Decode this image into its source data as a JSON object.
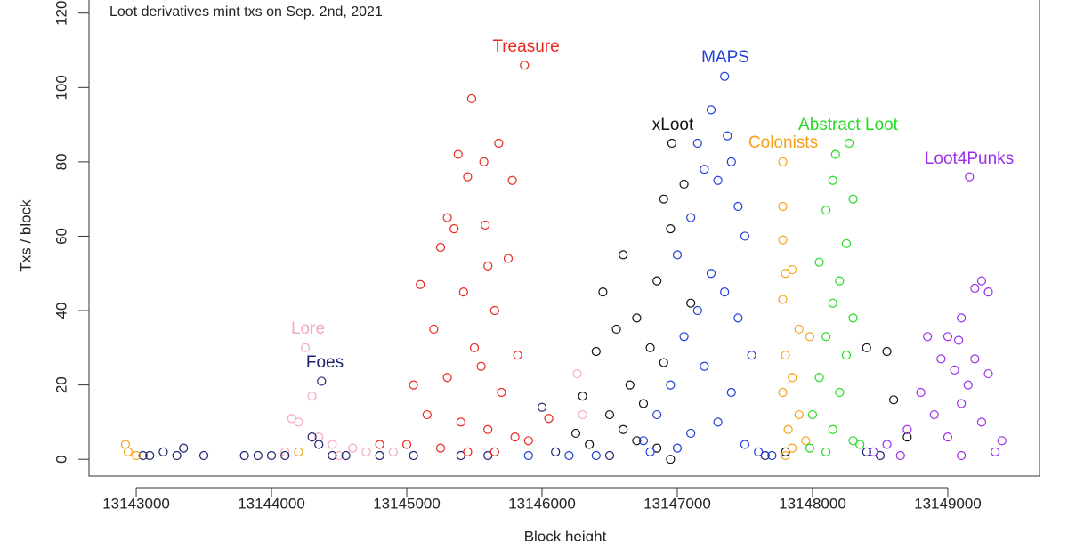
{
  "chart_data": {
    "type": "scatter",
    "title": "Loot derivatives mint txs on Sep. 2nd, 2021",
    "x_label": "Block height",
    "y_label": "Txs / block",
    "xlim": [
      13142651,
      13149678
    ],
    "ylim": [
      -4.5,
      124
    ],
    "xticks": [
      13143000,
      13144000,
      13145000,
      13146000,
      13147000,
      13148000,
      13149000
    ],
    "yticks": [
      0,
      20,
      40,
      60,
      80,
      100,
      120
    ],
    "series": [
      {
        "name": "Lore",
        "color": "#f5a9bf",
        "x": [
          13144250,
          13144300,
          13144150,
          13144200,
          13144350,
          13144450,
          13144600,
          13144700,
          13144900,
          13144500,
          13144100,
          13146260,
          13146300
        ],
        "y": [
          30,
          17,
          11,
          10,
          6,
          4,
          3,
          2,
          2,
          1,
          2,
          23,
          12
        ]
      },
      {
        "name": "Foes",
        "color": "#1c2270",
        "x": [
          13144370,
          13144300,
          13144350,
          13143100,
          13143200,
          13143300,
          13143350,
          13143500,
          13143800,
          13143900,
          13144000,
          13144100,
          13144450,
          13144550,
          13144800,
          13145050,
          13145400,
          13145600,
          13146000,
          13146100,
          13146500,
          13147650,
          13148400,
          13148500,
          13143050
        ],
        "y": [
          21,
          6,
          4,
          1,
          2,
          1,
          3,
          1,
          1,
          1,
          1,
          1,
          1,
          1,
          1,
          1,
          1,
          1,
          14,
          2,
          1,
          1,
          2,
          1,
          1
        ]
      },
      {
        "name": "Treasure",
        "color": "#e8281e",
        "x": [
          13145870,
          13145480,
          13145680,
          13145380,
          13145570,
          13145450,
          13145780,
          13145300,
          13145350,
          13145580,
          13145250,
          13145100,
          13145600,
          13145750,
          13145420,
          13145650,
          13145200,
          13145500,
          13145820,
          13145050,
          13145300,
          13145550,
          13145700,
          13145150,
          13145400,
          13145600,
          13145800,
          13145000,
          13145250,
          13145450,
          13145650,
          13145900,
          13146050,
          13144800
        ],
        "y": [
          106,
          97,
          85,
          82,
          80,
          76,
          75,
          65,
          62,
          63,
          57,
          47,
          52,
          54,
          45,
          40,
          35,
          30,
          28,
          20,
          22,
          25,
          18,
          12,
          10,
          8,
          6,
          4,
          3,
          2,
          2,
          5,
          11,
          4
        ]
      },
      {
        "name": "xLoot",
        "color": "#111111",
        "x": [
          13146960,
          13146900,
          13147050,
          13146600,
          13146950,
          13146850,
          13146450,
          13147100,
          13146700,
          13146800,
          13146550,
          13146400,
          13146900,
          13146650,
          13146300,
          13146750,
          13146500,
          13146600,
          13146700,
          13146350,
          13146850,
          13146250,
          13148550,
          13148400,
          13148600,
          13147800,
          13148700,
          13146950
        ],
        "y": [
          85,
          70,
          74,
          55,
          62,
          48,
          45,
          42,
          38,
          30,
          35,
          29,
          26,
          20,
          17,
          15,
          12,
          8,
          5,
          4,
          3,
          7,
          29,
          30,
          16,
          2,
          6,
          0
        ]
      },
      {
        "name": "MAPS",
        "color": "#1f3fd6",
        "x": [
          13147350,
          13147250,
          13147370,
          13147150,
          13147400,
          13147200,
          13147300,
          13147450,
          13147100,
          13147500,
          13147000,
          13147250,
          13147350,
          13147150,
          13147450,
          13147050,
          13147550,
          13147200,
          13146950,
          13147400,
          13146850,
          13147300,
          13147100,
          13146750,
          13147500,
          13147000,
          13146800,
          13147600,
          13146200,
          13145900,
          13147700,
          13146400
        ],
        "y": [
          103,
          94,
          87,
          85,
          80,
          78,
          75,
          68,
          65,
          60,
          55,
          50,
          45,
          40,
          38,
          33,
          28,
          25,
          20,
          18,
          12,
          10,
          7,
          5,
          4,
          3,
          2,
          2,
          1,
          1,
          1,
          1
        ]
      },
      {
        "name": "Colonists",
        "color": "#f5a21a",
        "x": [
          13147780,
          13147780,
          13147780,
          13147850,
          13147800,
          13147780,
          13147980,
          13147900,
          13147800,
          13147850,
          13147780,
          13147900,
          13147820,
          13147950,
          13147850,
          13147800,
          13142920,
          13142940,
          13143000,
          13144200
        ],
        "y": [
          80,
          68,
          59,
          51,
          50,
          43,
          33,
          35,
          28,
          22,
          18,
          12,
          8,
          5,
          3,
          1,
          4,
          2,
          1,
          2
        ]
      },
      {
        "name": "Abstract Loot",
        "color": "#22dd1e",
        "x": [
          13148270,
          13148170,
          13148150,
          13148300,
          13148100,
          13148250,
          13148050,
          13148200,
          13148150,
          13148300,
          13148100,
          13148250,
          13148050,
          13148200,
          13148000,
          13148150,
          13148300,
          13147980,
          13148100,
          13148350
        ],
        "y": [
          85,
          82,
          75,
          70,
          67,
          58,
          53,
          48,
          42,
          38,
          33,
          28,
          22,
          18,
          12,
          8,
          5,
          3,
          2,
          4
        ]
      },
      {
        "name": "Loot4Punks",
        "color": "#9b30e8",
        "x": [
          13149160,
          13149250,
          13149200,
          13149300,
          13149100,
          13148850,
          13149000,
          13149080,
          13148950,
          13149200,
          13149050,
          13148800,
          13149150,
          13149300,
          13149100,
          13148900,
          13149250,
          13148700,
          13149000,
          13149400,
          13148550,
          13148450,
          13149350,
          13148650,
          13149100
        ],
        "y": [
          76,
          48,
          46,
          45,
          38,
          33,
          33,
          32,
          27,
          27,
          24,
          18,
          20,
          23,
          15,
          12,
          10,
          8,
          6,
          5,
          4,
          2,
          2,
          1,
          1
        ]
      }
    ]
  }
}
